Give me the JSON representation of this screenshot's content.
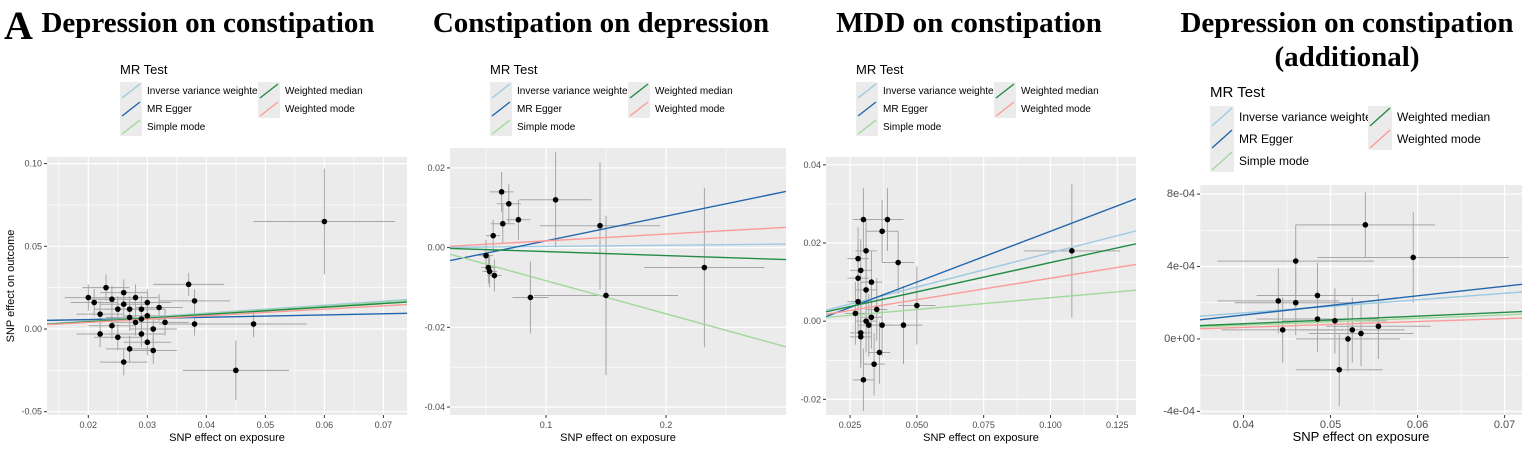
{
  "panel_letter": "A",
  "colors": {
    "ivw": "#9ecae1",
    "egger": "#2166ac",
    "simple_mode": "#a1d99b",
    "weighted_median": "#238b45",
    "weighted_mode": "#fb9a99",
    "panel_bg": "#ebebeb",
    "grid": "#ffffff",
    "point": "#000000",
    "errorbar": "#a6a6a6"
  },
  "legend": {
    "title": "MR Test",
    "items": [
      {
        "key": "ivw",
        "label": "Inverse variance weighted"
      },
      {
        "key": "egger",
        "label": "MR Egger"
      },
      {
        "key": "simple_mode",
        "label": "Simple mode"
      },
      {
        "key": "weighted_median",
        "label": "Weighted median"
      },
      {
        "key": "weighted_mode",
        "label": "Weighted mode"
      }
    ]
  },
  "chart_data": [
    {
      "type": "scatter",
      "title": "Depression on constipation",
      "xlabel": "SNP effect on exposure",
      "ylabel": "SNP effect on outcome",
      "xlim": [
        0.013,
        0.074
      ],
      "ylim": [
        -0.052,
        0.104
      ],
      "xticks": [
        0.02,
        0.03,
        0.04,
        0.05,
        0.06,
        0.07
      ],
      "xtick_labels": [
        "0.02",
        "0.03",
        "0.04",
        "0.05",
        "0.06",
        "0.07"
      ],
      "yticks": [
        -0.05,
        0.0,
        0.05,
        0.1
      ],
      "ytick_labels": [
        "-0.05",
        "0.00",
        "0.05",
        "0.10"
      ],
      "grid": true,
      "lines": [
        {
          "key": "ivw",
          "intercept": 0,
          "slope": 0.24
        },
        {
          "key": "egger",
          "intercept": 0.0043,
          "slope": 0.07
        },
        {
          "key": "simple_mode",
          "intercept": 0,
          "slope": 0.23
        },
        {
          "key": "weighted_median",
          "intercept": 0,
          "slope": 0.22
        },
        {
          "key": "weighted_mode",
          "intercept": 0,
          "slope": 0.2
        }
      ],
      "points": [
        {
          "x": 0.06,
          "y": 0.065,
          "xerr": 0.012,
          "yerr": 0.032
        },
        {
          "x": 0.045,
          "y": -0.025,
          "xerr": 0.009,
          "yerr": 0.018
        },
        {
          "x": 0.048,
          "y": 0.003,
          "xerr": 0.009,
          "yerr": 0.008
        },
        {
          "x": 0.037,
          "y": 0.027,
          "xerr": 0.006,
          "yerr": 0.007
        },
        {
          "x": 0.038,
          "y": 0.017,
          "xerr": 0.006,
          "yerr": 0.007
        },
        {
          "x": 0.038,
          "y": 0.003,
          "xerr": 0.006,
          "yerr": 0.007
        },
        {
          "x": 0.02,
          "y": 0.019,
          "xerr": 0.004,
          "yerr": 0.008
        },
        {
          "x": 0.021,
          "y": 0.016,
          "xerr": 0.004,
          "yerr": 0.008
        },
        {
          "x": 0.022,
          "y": 0.009,
          "xerr": 0.004,
          "yerr": 0.008
        },
        {
          "x": 0.023,
          "y": 0.025,
          "xerr": 0.004,
          "yerr": 0.008
        },
        {
          "x": 0.024,
          "y": 0.002,
          "xerr": 0.004,
          "yerr": 0.008
        },
        {
          "x": 0.025,
          "y": 0.012,
          "xerr": 0.004,
          "yerr": 0.008
        },
        {
          "x": 0.025,
          "y": -0.005,
          "xerr": 0.004,
          "yerr": 0.008
        },
        {
          "x": 0.026,
          "y": 0.022,
          "xerr": 0.004,
          "yerr": 0.008
        },
        {
          "x": 0.026,
          "y": 0.015,
          "xerr": 0.004,
          "yerr": 0.008
        },
        {
          "x": 0.027,
          "y": 0.007,
          "xerr": 0.004,
          "yerr": 0.008
        },
        {
          "x": 0.027,
          "y": -0.012,
          "xerr": 0.004,
          "yerr": 0.008
        },
        {
          "x": 0.028,
          "y": 0.019,
          "xerr": 0.004,
          "yerr": 0.008
        },
        {
          "x": 0.028,
          "y": 0.004,
          "xerr": 0.004,
          "yerr": 0.008
        },
        {
          "x": 0.029,
          "y": 0.012,
          "xerr": 0.004,
          "yerr": 0.008
        },
        {
          "x": 0.029,
          "y": -0.003,
          "xerr": 0.004,
          "yerr": 0.008
        },
        {
          "x": 0.03,
          "y": 0.016,
          "xerr": 0.004,
          "yerr": 0.008
        },
        {
          "x": 0.03,
          "y": 0.008,
          "xerr": 0.004,
          "yerr": 0.008
        },
        {
          "x": 0.031,
          "y": 0.0,
          "xerr": 0.004,
          "yerr": 0.008
        },
        {
          "x": 0.031,
          "y": -0.013,
          "xerr": 0.004,
          "yerr": 0.008
        },
        {
          "x": 0.032,
          "y": 0.013,
          "xerr": 0.004,
          "yerr": 0.008
        },
        {
          "x": 0.033,
          "y": 0.004,
          "xerr": 0.004,
          "yerr": 0.008
        },
        {
          "x": 0.022,
          "y": -0.003,
          "xerr": 0.004,
          "yerr": 0.008
        },
        {
          "x": 0.024,
          "y": 0.018,
          "xerr": 0.004,
          "yerr": 0.008
        },
        {
          "x": 0.026,
          "y": -0.02,
          "xerr": 0.004,
          "yerr": 0.008
        },
        {
          "x": 0.027,
          "y": 0.012,
          "xerr": 0.004,
          "yerr": 0.008
        },
        {
          "x": 0.029,
          "y": 0.006,
          "xerr": 0.004,
          "yerr": 0.008
        },
        {
          "x": 0.03,
          "y": -0.008,
          "xerr": 0.004,
          "yerr": 0.008
        }
      ]
    },
    {
      "type": "scatter",
      "title": "Constipation on depression",
      "xlabel": "SNP effect on exposure",
      "ylabel": "",
      "xlim": [
        0.02,
        0.3
      ],
      "ylim": [
        -0.042,
        0.025
      ],
      "xticks": [
        0.1,
        0.2
      ],
      "xtick_labels": [
        "0.1",
        "0.2"
      ],
      "yticks": [
        -0.04,
        -0.02,
        0.0,
        0.02
      ],
      "ytick_labels": [
        "-0.04",
        "-0.02",
        "0.00",
        "0.02"
      ],
      "grid": true,
      "lines": [
        {
          "key": "ivw",
          "intercept": 0,
          "slope": 0.003
        },
        {
          "key": "egger",
          "intercept": -0.0045,
          "slope": 0.062
        },
        {
          "key": "simple_mode",
          "intercept": 0,
          "slope": -0.083
        },
        {
          "key": "weighted_median",
          "intercept": 0,
          "slope": -0.01
        },
        {
          "key": "weighted_mode",
          "intercept": 0,
          "slope": 0.017
        }
      ],
      "points": [
        {
          "x": 0.05,
          "y": -0.002,
          "xerr": 0.006,
          "yerr": 0.004
        },
        {
          "x": 0.052,
          "y": -0.005,
          "xerr": 0.006,
          "yerr": 0.004
        },
        {
          "x": 0.053,
          "y": -0.006,
          "xerr": 0.006,
          "yerr": 0.004
        },
        {
          "x": 0.057,
          "y": -0.007,
          "xerr": 0.006,
          "yerr": 0.004
        },
        {
          "x": 0.056,
          "y": 0.003,
          "xerr": 0.006,
          "yerr": 0.004
        },
        {
          "x": 0.063,
          "y": 0.014,
          "xerr": 0.01,
          "yerr": 0.005
        },
        {
          "x": 0.064,
          "y": 0.006,
          "xerr": 0.01,
          "yerr": 0.005
        },
        {
          "x": 0.069,
          "y": 0.011,
          "xerr": 0.01,
          "yerr": 0.005
        },
        {
          "x": 0.077,
          "y": 0.007,
          "xerr": 0.01,
          "yerr": 0.005
        },
        {
          "x": 0.087,
          "y": -0.0125,
          "xerr": 0.015,
          "yerr": 0.009
        },
        {
          "x": 0.108,
          "y": 0.012,
          "xerr": 0.03,
          "yerr": 0.012
        },
        {
          "x": 0.145,
          "y": 0.0055,
          "xerr": 0.05,
          "yerr": 0.016
        },
        {
          "x": 0.15,
          "y": -0.012,
          "xerr": 0.06,
          "yerr": 0.02
        },
        {
          "x": 0.232,
          "y": -0.005,
          "xerr": 0.05,
          "yerr": 0.02
        }
      ]
    },
    {
      "type": "scatter",
      "title": "MDD on constipation",
      "xlabel": "SNP effect on exposure",
      "ylabel": "",
      "xlim": [
        0.016,
        0.132
      ],
      "ylim": [
        -0.024,
        0.042
      ],
      "xticks": [
        0.025,
        0.05,
        0.075,
        0.1,
        0.125
      ],
      "xtick_labels": [
        "0.025",
        "0.050",
        "0.075",
        "0.100",
        "0.125"
      ],
      "yticks": [
        -0.02,
        0.0,
        0.02,
        0.04
      ],
      "ytick_labels": [
        "-0.02",
        "0.00",
        "0.02",
        "0.04"
      ],
      "grid": true,
      "lines": [
        {
          "key": "ivw",
          "intercept": 0,
          "slope": 0.175
        },
        {
          "key": "egger",
          "intercept": -0.003,
          "slope": 0.26
        },
        {
          "key": "simple_mode",
          "intercept": 0,
          "slope": 0.06
        },
        {
          "key": "weighted_median",
          "intercept": 0,
          "slope": 0.15
        },
        {
          "key": "weighted_mode",
          "intercept": 0,
          "slope": 0.11
        }
      ],
      "points": [
        {
          "x": 0.108,
          "y": 0.018,
          "xerr": 0.018,
          "yerr": 0.017
        },
        {
          "x": 0.05,
          "y": 0.004,
          "xerr": 0.007,
          "yerr": 0.01
        },
        {
          "x": 0.045,
          "y": -0.001,
          "xerr": 0.007,
          "yerr": 0.01
        },
        {
          "x": 0.043,
          "y": 0.015,
          "xerr": 0.006,
          "yerr": 0.008
        },
        {
          "x": 0.039,
          "y": 0.026,
          "xerr": 0.006,
          "yerr": 0.008
        },
        {
          "x": 0.037,
          "y": 0.023,
          "xerr": 0.006,
          "yerr": 0.008
        },
        {
          "x": 0.028,
          "y": 0.016,
          "xerr": 0.004,
          "yerr": 0.008
        },
        {
          "x": 0.029,
          "y": 0.013,
          "xerr": 0.004,
          "yerr": 0.008
        },
        {
          "x": 0.03,
          "y": 0.026,
          "xerr": 0.004,
          "yerr": 0.008
        },
        {
          "x": 0.031,
          "y": 0.008,
          "xerr": 0.004,
          "yerr": 0.008
        },
        {
          "x": 0.028,
          "y": 0.005,
          "xerr": 0.004,
          "yerr": 0.008
        },
        {
          "x": 0.029,
          "y": -0.003,
          "xerr": 0.004,
          "yerr": 0.008
        },
        {
          "x": 0.03,
          "y": -0.015,
          "xerr": 0.004,
          "yerr": 0.008
        },
        {
          "x": 0.031,
          "y": 0.0,
          "xerr": 0.004,
          "yerr": 0.008
        },
        {
          "x": 0.032,
          "y": -0.001,
          "xerr": 0.004,
          "yerr": 0.008
        },
        {
          "x": 0.033,
          "y": 0.01,
          "xerr": 0.004,
          "yerr": 0.008
        },
        {
          "x": 0.034,
          "y": -0.011,
          "xerr": 0.004,
          "yerr": 0.008
        },
        {
          "x": 0.035,
          "y": 0.003,
          "xerr": 0.004,
          "yerr": 0.008
        },
        {
          "x": 0.036,
          "y": -0.008,
          "xerr": 0.004,
          "yerr": 0.008
        },
        {
          "x": 0.037,
          "y": -0.001,
          "xerr": 0.004,
          "yerr": 0.008
        },
        {
          "x": 0.027,
          "y": 0.002,
          "xerr": 0.004,
          "yerr": 0.008
        },
        {
          "x": 0.028,
          "y": 0.011,
          "xerr": 0.004,
          "yerr": 0.008
        },
        {
          "x": 0.029,
          "y": -0.004,
          "xerr": 0.004,
          "yerr": 0.008
        },
        {
          "x": 0.031,
          "y": 0.018,
          "xerr": 0.004,
          "yerr": 0.008
        },
        {
          "x": 0.033,
          "y": 0.001,
          "xerr": 0.004,
          "yerr": 0.008
        }
      ]
    },
    {
      "type": "scatter",
      "title": "Depression on constipation (additional)",
      "xlabel": "SNP effect on exposure",
      "ylabel": "",
      "xlim": [
        0.035,
        0.072
      ],
      "ylim": [
        -0.00042,
        0.00085
      ],
      "xticks": [
        0.04,
        0.05,
        0.06,
        0.07
      ],
      "xtick_labels": [
        "0.04",
        "0.05",
        "0.06",
        "0.07"
      ],
      "yticks": [
        -0.0004,
        0.0,
        0.0004,
        0.0008
      ],
      "ytick_labels": [
        "-4e-04",
        "0e+00",
        "4e-04",
        "8e-04"
      ],
      "grid": true,
      "lines": [
        {
          "key": "ivw",
          "intercept": 0,
          "slope": 0.0036
        },
        {
          "key": "egger",
          "intercept": -8e-05,
          "slope": 0.0053
        },
        {
          "key": "simple_mode",
          "intercept": 0,
          "slope": 0.0019
        },
        {
          "key": "weighted_median",
          "intercept": 0,
          "slope": 0.0021
        },
        {
          "key": "weighted_mode",
          "intercept": 0,
          "slope": 0.0016
        }
      ],
      "points": [
        {
          "x": 0.054,
          "y": 0.00063,
          "xerr": 0.008,
          "yerr": 0.00018
        },
        {
          "x": 0.0595,
          "y": 0.00045,
          "xerr": 0.011,
          "yerr": 0.00025
        },
        {
          "x": 0.046,
          "y": 0.00043,
          "xerr": 0.009,
          "yerr": 0.0002
        },
        {
          "x": 0.044,
          "y": 0.00021,
          "xerr": 0.007,
          "yerr": 0.00018
        },
        {
          "x": 0.046,
          "y": 0.0002,
          "xerr": 0.007,
          "yerr": 0.00018
        },
        {
          "x": 0.0485,
          "y": 0.00024,
          "xerr": 0.007,
          "yerr": 0.00018
        },
        {
          "x": 0.0485,
          "y": 0.00011,
          "xerr": 0.007,
          "yerr": 0.00018
        },
        {
          "x": 0.0445,
          "y": 5e-05,
          "xerr": 0.007,
          "yerr": 0.00018
        },
        {
          "x": 0.0505,
          "y": 0.0001,
          "xerr": 0.006,
          "yerr": 0.00018
        },
        {
          "x": 0.0525,
          "y": 5e-05,
          "xerr": 0.006,
          "yerr": 0.00018
        },
        {
          "x": 0.051,
          "y": -0.00017,
          "xerr": 0.005,
          "yerr": 0.0002
        },
        {
          "x": 0.0535,
          "y": 3e-05,
          "xerr": 0.006,
          "yerr": 0.00018
        },
        {
          "x": 0.0555,
          "y": 7e-05,
          "xerr": 0.006,
          "yerr": 0.00018
        },
        {
          "x": 0.052,
          "y": 0.0,
          "xerr": 0.006,
          "yerr": 0.00018
        }
      ]
    }
  ]
}
